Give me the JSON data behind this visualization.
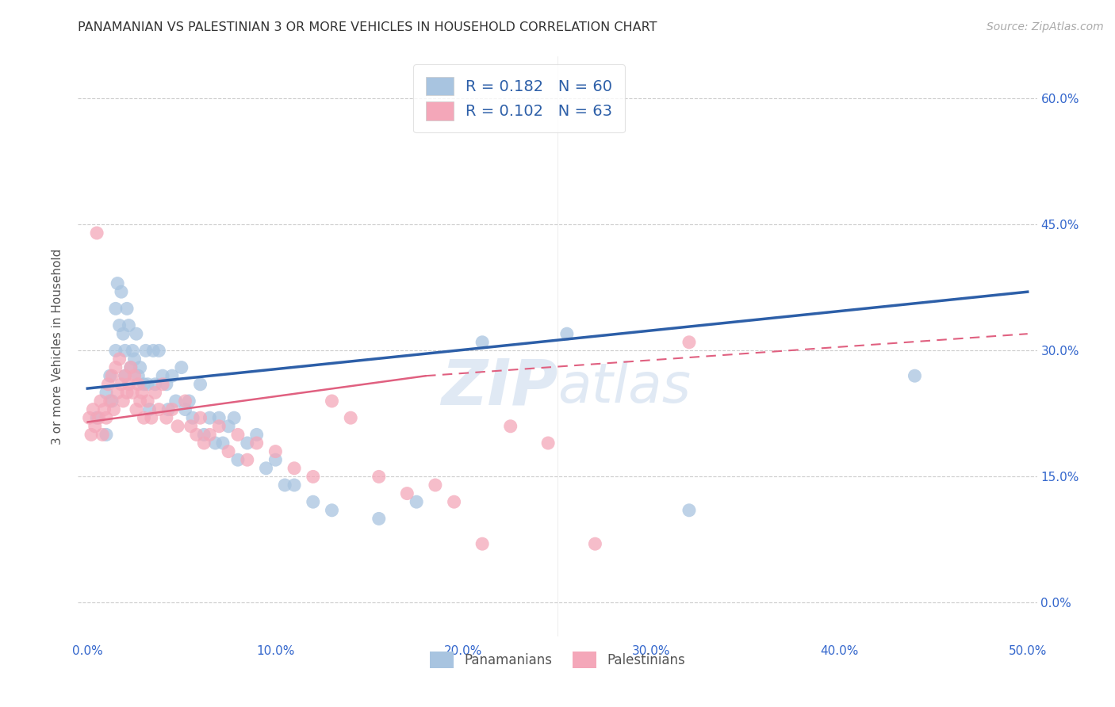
{
  "title": "PANAMANIAN VS PALESTINIAN 3 OR MORE VEHICLES IN HOUSEHOLD CORRELATION CHART",
  "source": "Source: ZipAtlas.com",
  "xlabel_ticks": [
    "0.0%",
    "10.0%",
    "20.0%",
    "30.0%",
    "40.0%",
    "50.0%"
  ],
  "xlabel_vals": [
    0.0,
    0.1,
    0.2,
    0.3,
    0.4,
    0.5
  ],
  "ylabel_ticks": [
    "0.0%",
    "15.0%",
    "30.0%",
    "45.0%",
    "60.0%"
  ],
  "ylabel_vals": [
    0.0,
    0.15,
    0.3,
    0.45,
    0.6
  ],
  "xlim": [
    -0.005,
    0.505
  ],
  "ylim": [
    -0.04,
    0.65
  ],
  "ylabel_label": "3 or more Vehicles in Household",
  "legend_blue_label": "Panamanians",
  "legend_pink_label": "Palestinians",
  "R_blue": 0.182,
  "N_blue": 60,
  "R_pink": 0.102,
  "N_pink": 63,
  "blue_color": "#a8c4e0",
  "pink_color": "#f4a7b9",
  "blue_line_color": "#2d5fa8",
  "pink_line_color": "#e06080",
  "watermark_zip": "ZIP",
  "watermark_atlas": "atlas",
  "blue_x": [
    0.005,
    0.01,
    0.01,
    0.012,
    0.013,
    0.015,
    0.015,
    0.016,
    0.017,
    0.018,
    0.019,
    0.02,
    0.02,
    0.021,
    0.022,
    0.023,
    0.024,
    0.025,
    0.026,
    0.027,
    0.028,
    0.03,
    0.031,
    0.032,
    0.033,
    0.035,
    0.036,
    0.038,
    0.04,
    0.042,
    0.043,
    0.045,
    0.047,
    0.05,
    0.052,
    0.054,
    0.056,
    0.06,
    0.062,
    0.065,
    0.068,
    0.07,
    0.072,
    0.075,
    0.078,
    0.08,
    0.085,
    0.09,
    0.095,
    0.1,
    0.105,
    0.11,
    0.12,
    0.13,
    0.155,
    0.175,
    0.21,
    0.255,
    0.32,
    0.44
  ],
  "blue_y": [
    0.22,
    0.25,
    0.2,
    0.27,
    0.24,
    0.35,
    0.3,
    0.38,
    0.33,
    0.37,
    0.32,
    0.3,
    0.27,
    0.35,
    0.33,
    0.28,
    0.3,
    0.29,
    0.32,
    0.27,
    0.28,
    0.26,
    0.3,
    0.26,
    0.23,
    0.3,
    0.26,
    0.3,
    0.27,
    0.26,
    0.23,
    0.27,
    0.24,
    0.28,
    0.23,
    0.24,
    0.22,
    0.26,
    0.2,
    0.22,
    0.19,
    0.22,
    0.19,
    0.21,
    0.22,
    0.17,
    0.19,
    0.2,
    0.16,
    0.17,
    0.14,
    0.14,
    0.12,
    0.11,
    0.1,
    0.12,
    0.31,
    0.32,
    0.11,
    0.27
  ],
  "pink_x": [
    0.001,
    0.002,
    0.003,
    0.004,
    0.005,
    0.006,
    0.007,
    0.008,
    0.009,
    0.01,
    0.011,
    0.012,
    0.013,
    0.014,
    0.015,
    0.016,
    0.017,
    0.018,
    0.019,
    0.02,
    0.021,
    0.022,
    0.023,
    0.024,
    0.025,
    0.026,
    0.027,
    0.028,
    0.029,
    0.03,
    0.032,
    0.034,
    0.036,
    0.038,
    0.04,
    0.042,
    0.045,
    0.048,
    0.052,
    0.055,
    0.058,
    0.06,
    0.062,
    0.065,
    0.07,
    0.075,
    0.08,
    0.085,
    0.09,
    0.1,
    0.11,
    0.12,
    0.13,
    0.14,
    0.155,
    0.17,
    0.185,
    0.195,
    0.21,
    0.225,
    0.245,
    0.27,
    0.32
  ],
  "pink_y": [
    0.22,
    0.2,
    0.23,
    0.21,
    0.44,
    0.22,
    0.24,
    0.2,
    0.23,
    0.22,
    0.26,
    0.24,
    0.27,
    0.23,
    0.28,
    0.25,
    0.29,
    0.26,
    0.24,
    0.27,
    0.25,
    0.26,
    0.28,
    0.25,
    0.27,
    0.23,
    0.26,
    0.24,
    0.25,
    0.22,
    0.24,
    0.22,
    0.25,
    0.23,
    0.26,
    0.22,
    0.23,
    0.21,
    0.24,
    0.21,
    0.2,
    0.22,
    0.19,
    0.2,
    0.21,
    0.18,
    0.2,
    0.17,
    0.19,
    0.18,
    0.16,
    0.15,
    0.24,
    0.22,
    0.15,
    0.13,
    0.14,
    0.12,
    0.07,
    0.21,
    0.19,
    0.07,
    0.31
  ]
}
